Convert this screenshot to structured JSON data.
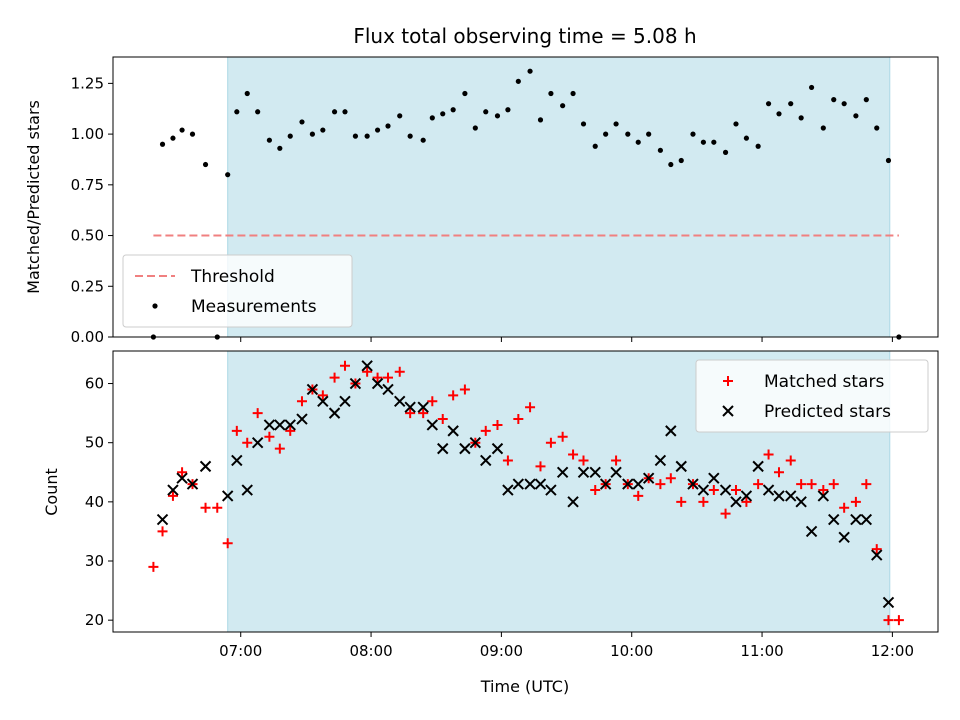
{
  "chart_data": {
    "title": "Flux total observing time = 5.08 h",
    "xlabel": "Time (UTC)",
    "xlim_hours": [
      6.02,
      12.35
    ],
    "x_tick_labels": [
      "07:00",
      "08:00",
      "09:00",
      "10:00",
      "11:00",
      "12:00"
    ],
    "x_tick_values_hours": [
      7,
      8,
      9,
      10,
      11,
      12
    ],
    "shaded_interval_hours": [
      6.9,
      11.98
    ],
    "colors": {
      "shade": "#add8e6",
      "threshold": "#f08080",
      "measurements": "#000000",
      "matched": "#ff0000",
      "predicted": "#000000"
    },
    "panels": [
      {
        "type": "scatter",
        "ylabel": "Matched/Predicted stars",
        "ylim": [
          0,
          1.38
        ],
        "y_ticks": [
          0.0,
          0.25,
          0.5,
          0.75,
          1.0,
          1.25
        ],
        "y_tick_labels": [
          "0.00",
          "0.25",
          "0.50",
          "0.75",
          "1.00",
          "1.25"
        ],
        "legend_position": "lower-left",
        "series": [
          {
            "name": "Threshold",
            "kind": "line",
            "style": "dashed",
            "x": [
              6.33,
              12.05
            ],
            "y": [
              0.5,
              0.5
            ]
          },
          {
            "name": "Measurements",
            "kind": "points",
            "x": [
              6.33,
              6.4,
              6.48,
              6.55,
              6.63,
              6.73,
              6.82,
              6.9,
              6.97,
              7.05,
              7.13,
              7.22,
              7.3,
              7.38,
              7.47,
              7.55,
              7.63,
              7.72,
              7.8,
              7.88,
              7.97,
              8.05,
              8.13,
              8.22,
              8.3,
              8.4,
              8.47,
              8.55,
              8.63,
              8.72,
              8.8,
              8.88,
              8.97,
              9.05,
              9.13,
              9.22,
              9.3,
              9.38,
              9.47,
              9.55,
              9.63,
              9.72,
              9.8,
              9.88,
              9.97,
              10.05,
              10.13,
              10.22,
              10.3,
              10.38,
              10.47,
              10.55,
              10.63,
              10.72,
              10.8,
              10.88,
              10.97,
              11.05,
              11.13,
              11.22,
              11.3,
              11.38,
              11.47,
              11.55,
              11.63,
              11.72,
              11.8,
              11.88,
              11.97,
              12.05
            ],
            "y": [
              0.0,
              0.95,
              0.98,
              1.02,
              1.0,
              0.85,
              0.0,
              0.8,
              1.11,
              1.2,
              1.11,
              0.97,
              0.93,
              0.99,
              1.06,
              1.0,
              1.02,
              1.11,
              1.11,
              0.99,
              0.99,
              1.02,
              1.04,
              1.09,
              0.99,
              0.97,
              1.08,
              1.1,
              1.12,
              1.2,
              1.03,
              1.11,
              1.09,
              1.12,
              1.26,
              1.31,
              1.07,
              1.2,
              1.14,
              1.2,
              1.05,
              0.94,
              1.0,
              1.05,
              1.0,
              0.96,
              1.0,
              0.92,
              0.85,
              0.87,
              1.0,
              0.96,
              0.96,
              0.91,
              1.05,
              0.98,
              0.94,
              1.15,
              1.1,
              1.15,
              1.08,
              1.23,
              1.03,
              1.17,
              1.15,
              1.09,
              1.17,
              1.03,
              0.87,
              0.0
            ]
          }
        ]
      },
      {
        "type": "scatter",
        "ylabel": "Count",
        "ylim": [
          18,
          65.5
        ],
        "y_ticks": [
          20,
          30,
          40,
          50,
          60
        ],
        "y_tick_labels": [
          "20",
          "30",
          "40",
          "50",
          "60"
        ],
        "legend_position": "upper-right",
        "series": [
          {
            "name": "Matched stars",
            "marker": "plus",
            "x": [
              6.33,
              6.4,
              6.48,
              6.55,
              6.63,
              6.73,
              6.82,
              6.9,
              6.97,
              7.05,
              7.13,
              7.22,
              7.3,
              7.38,
              7.47,
              7.55,
              7.63,
              7.72,
              7.8,
              7.88,
              7.97,
              8.05,
              8.13,
              8.22,
              8.3,
              8.4,
              8.47,
              8.55,
              8.63,
              8.72,
              8.8,
              8.88,
              8.97,
              9.05,
              9.13,
              9.22,
              9.3,
              9.38,
              9.47,
              9.55,
              9.63,
              9.72,
              9.8,
              9.88,
              9.97,
              10.05,
              10.13,
              10.22,
              10.3,
              10.38,
              10.47,
              10.55,
              10.63,
              10.72,
              10.8,
              10.88,
              10.97,
              11.05,
              11.13,
              11.22,
              11.3,
              11.38,
              11.47,
              11.55,
              11.63,
              11.72,
              11.8,
              11.88,
              11.97,
              12.05
            ],
            "y": [
              29,
              35,
              41,
              45,
              43,
              39,
              39,
              33,
              52,
              50,
              55,
              51,
              49,
              52,
              57,
              59,
              58,
              61,
              63,
              60,
              62,
              61,
              61,
              62,
              55,
              55,
              57,
              54,
              58,
              59,
              50,
              52,
              53,
              47,
              54,
              56,
              46,
              50,
              51,
              48,
              47,
              42,
              43,
              47,
              43,
              41,
              44,
              43,
              44,
              40,
              43,
              40,
              42,
              38,
              42,
              40,
              43,
              48,
              45,
              47,
              43,
              43,
              42,
              43,
              39,
              40,
              43,
              32,
              20,
              20
            ]
          },
          {
            "name": "Predicted stars",
            "marker": "x",
            "x": [
              6.4,
              6.48,
              6.55,
              6.63,
              6.73,
              6.9,
              6.97,
              7.05,
              7.13,
              7.22,
              7.3,
              7.38,
              7.47,
              7.55,
              7.63,
              7.72,
              7.8,
              7.88,
              7.97,
              8.05,
              8.13,
              8.22,
              8.3,
              8.4,
              8.47,
              8.55,
              8.63,
              8.72,
              8.8,
              8.88,
              8.97,
              9.05,
              9.13,
              9.22,
              9.3,
              9.38,
              9.47,
              9.55,
              9.63,
              9.72,
              9.8,
              9.88,
              9.97,
              10.05,
              10.13,
              10.22,
              10.3,
              10.38,
              10.47,
              10.55,
              10.63,
              10.72,
              10.8,
              10.88,
              10.97,
              11.05,
              11.13,
              11.22,
              11.3,
              11.38,
              11.47,
              11.55,
              11.63,
              11.72,
              11.8,
              11.88,
              11.97
            ],
            "y": [
              37,
              42,
              44,
              43,
              46,
              41,
              47,
              42,
              50,
              53,
              53,
              53,
              54,
              59,
              57,
              55,
              57,
              60,
              63,
              60,
              59,
              57,
              56,
              56,
              53,
              49,
              52,
              49,
              50,
              47,
              49,
              42,
              43,
              43,
              43,
              42,
              45,
              40,
              45,
              45,
              43,
              45,
              43,
              43,
              44,
              47,
              52,
              46,
              43,
              42,
              44,
              42,
              40,
              41,
              46,
              42,
              41,
              41,
              40,
              35,
              41,
              37,
              34,
              37,
              37,
              31,
              23
            ]
          }
        ]
      }
    ]
  }
}
